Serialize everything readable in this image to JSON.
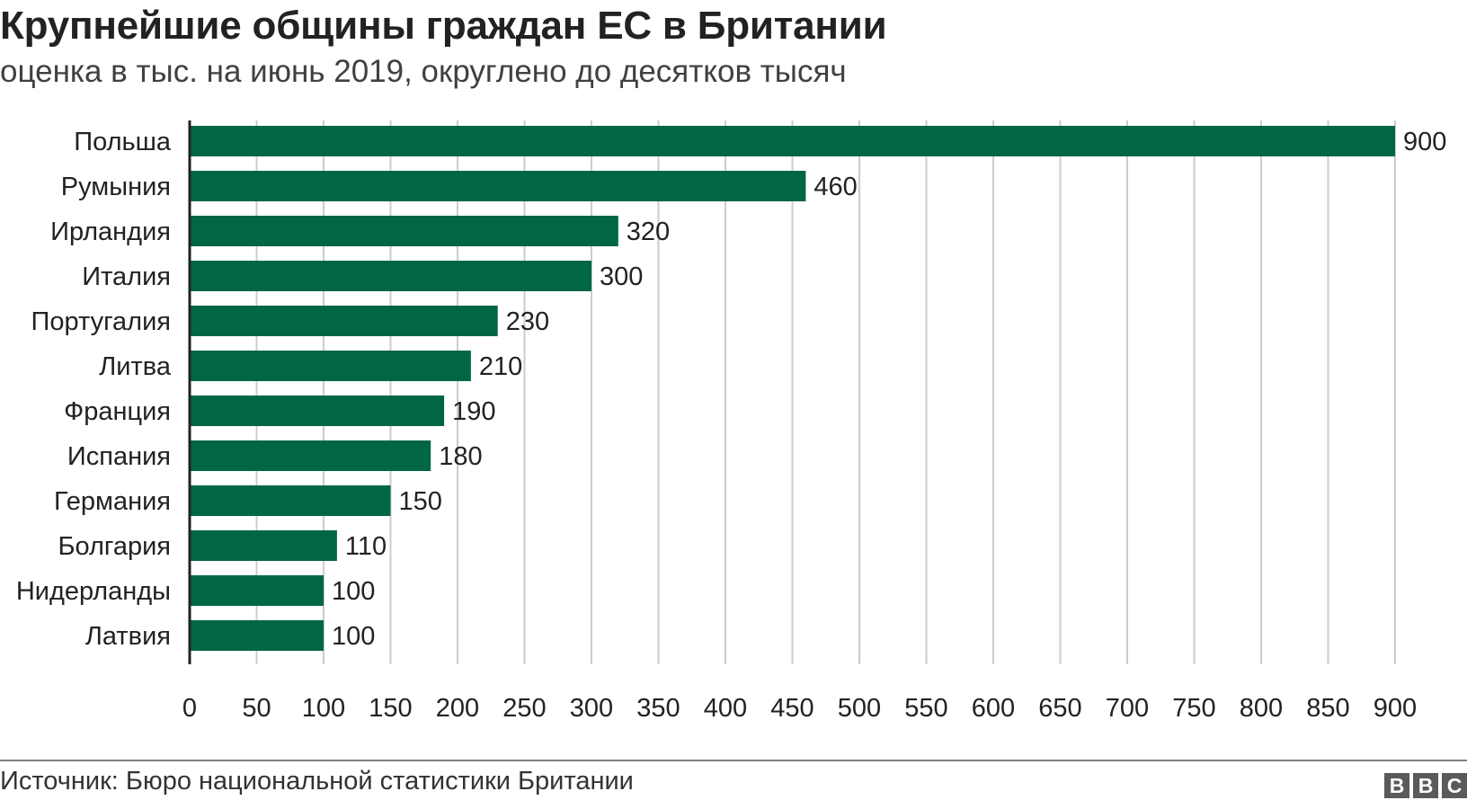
{
  "title": "Крупнейшие общины граждан ЕС в Британии",
  "subtitle": "оценка в тыс. на июнь 2019, округлено до десятков тысяч",
  "source": "Источник: Бюро национальной статистики Британии",
  "logo": [
    "B",
    "B",
    "C"
  ],
  "chart_data": {
    "type": "bar",
    "orientation": "horizontal",
    "categories": [
      "Польша",
      "Румыния",
      "Ирландия",
      "Италия",
      "Португалия",
      "Литва",
      "Франция",
      "Испания",
      "Германия",
      "Болгария",
      "Нидерланды",
      "Латвия"
    ],
    "values": [
      900,
      460,
      320,
      300,
      230,
      210,
      190,
      180,
      150,
      110,
      100,
      100
    ],
    "data_labels": [
      "900",
      "460",
      "320",
      "300",
      "230",
      "210",
      "190",
      "180",
      "150",
      "110",
      "100",
      "100"
    ],
    "xlim": [
      0,
      900
    ],
    "xticks": [
      0,
      50,
      100,
      150,
      200,
      250,
      300,
      350,
      400,
      450,
      500,
      550,
      600,
      650,
      700,
      750,
      800,
      850,
      900
    ],
    "grid": true,
    "bar_color": "#006644",
    "grid_color": "#cccccc"
  }
}
